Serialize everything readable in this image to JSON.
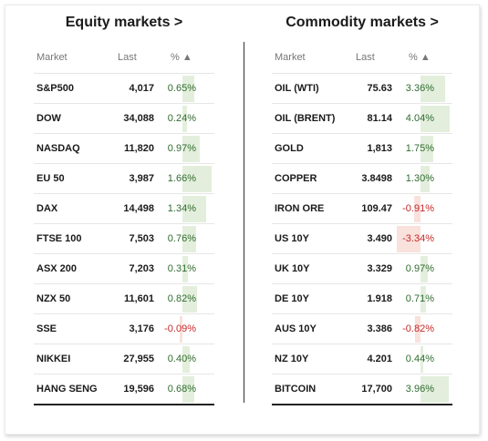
{
  "equity": {
    "title": "Equity markets >",
    "headers": {
      "market": "Market",
      "last": "Last",
      "pct": "% ▲"
    },
    "rows": [
      {
        "name": "S&P500",
        "last": "4,017",
        "pct": "0.65%",
        "value": 0.65
      },
      {
        "name": "DOW",
        "last": "34,088",
        "pct": "0.24%",
        "value": 0.24
      },
      {
        "name": "NASDAQ",
        "last": "11,820",
        "pct": "0.97%",
        "value": 0.97
      },
      {
        "name": "EU 50",
        "last": "3,987",
        "pct": "1.66%",
        "value": 1.66
      },
      {
        "name": "DAX",
        "last": "14,498",
        "pct": "1.34%",
        "value": 1.34
      },
      {
        "name": "FTSE 100",
        "last": "7,503",
        "pct": "0.76%",
        "value": 0.76
      },
      {
        "name": "ASX 200",
        "last": "7,203",
        "pct": "0.31%",
        "value": 0.31
      },
      {
        "name": "NZX 50",
        "last": "11,601",
        "pct": "0.82%",
        "value": 0.82
      },
      {
        "name": "SSE",
        "last": "3,176",
        "pct": "-0.09%",
        "value": -0.09
      },
      {
        "name": "NIKKEI",
        "last": "27,955",
        "pct": "0.40%",
        "value": 0.4
      },
      {
        "name": "HANG SENG",
        "last": "19,596",
        "pct": "0.68%",
        "value": 0.68
      }
    ]
  },
  "commodity": {
    "title": "Commodity markets >",
    "headers": {
      "market": "Market",
      "last": "Last",
      "pct": "% ▲"
    },
    "rows": [
      {
        "name": "OIL (WTI)",
        "last": "75.63",
        "pct": "3.36%",
        "value": 3.36
      },
      {
        "name": "OIL (BRENT)",
        "last": "81.14",
        "pct": "4.04%",
        "value": 4.04
      },
      {
        "name": "GOLD",
        "last": "1,813",
        "pct": "1.75%",
        "value": 1.75
      },
      {
        "name": "COPPER",
        "last": "3.8498",
        "pct": "1.30%",
        "value": 1.3
      },
      {
        "name": "IRON ORE",
        "last": "109.47",
        "pct": "-0.91%",
        "value": -0.91
      },
      {
        "name": "US 10Y",
        "last": "3.490",
        "pct": "-3.34%",
        "value": -3.34
      },
      {
        "name": "UK 10Y",
        "last": "3.329",
        "pct": "0.97%",
        "value": 0.97
      },
      {
        "name": "DE 10Y",
        "last": "1.918",
        "pct": "0.71%",
        "value": 0.71
      },
      {
        "name": "AUS 10Y",
        "last": "3.386",
        "pct": "-0.82%",
        "value": -0.82
      },
      {
        "name": "NZ 10Y",
        "last": "4.201",
        "pct": "0.44%",
        "value": 0.44
      },
      {
        "name": "BITCOIN",
        "last": "17,700",
        "pct": "3.96%",
        "value": 3.96
      }
    ]
  },
  "colors": {
    "positive_bar": "#e3efdc",
    "negative_bar": "#f9e1dc",
    "positive_text": "#2f6b2f",
    "negative_text": "#c62828"
  }
}
